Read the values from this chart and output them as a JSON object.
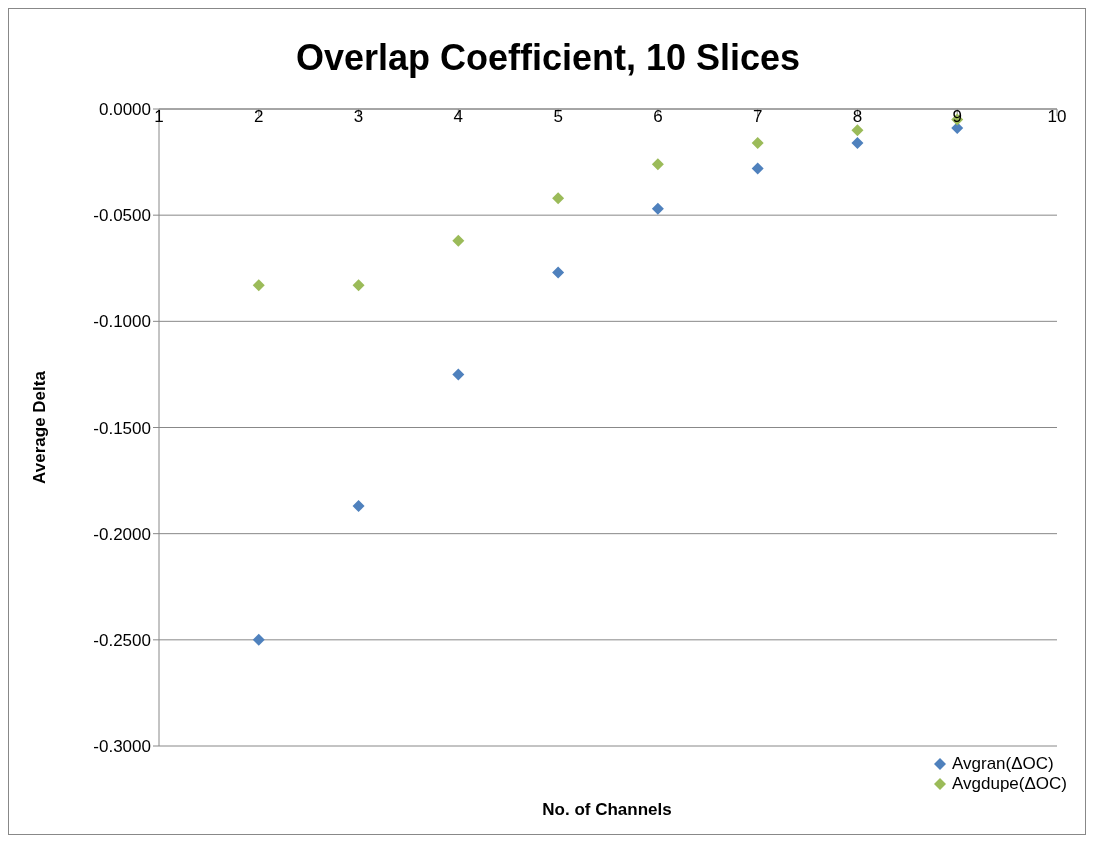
{
  "chart_data": {
    "type": "scatter",
    "title": "Overlap Coefficient, 10 Slices",
    "xlabel": "No. of Channels",
    "ylabel": "Average Delta",
    "x": [
      2,
      3,
      4,
      5,
      6,
      7,
      8,
      9
    ],
    "series": [
      {
        "name": "Avgran(ΔOC)",
        "color": "#4f81bd",
        "values": [
          -0.25,
          -0.187,
          -0.125,
          -0.077,
          -0.047,
          -0.028,
          -0.016,
          -0.009
        ]
      },
      {
        "name": "Avgdupe(ΔOC)",
        "color": "#9bbb59",
        "values": [
          -0.083,
          -0.083,
          -0.062,
          -0.042,
          -0.026,
          -0.016,
          -0.01,
          -0.005
        ]
      }
    ],
    "xlim": [
      1,
      10
    ],
    "xticks": [
      1,
      2,
      3,
      4,
      5,
      6,
      7,
      8,
      9,
      10
    ],
    "ylim": [
      -0.3,
      0
    ],
    "yticks": [
      {
        "value": -0.3,
        "label": "-0.3000"
      },
      {
        "value": -0.25,
        "label": "-0.2500"
      },
      {
        "value": -0.2,
        "label": "-0.2000"
      },
      {
        "value": -0.15,
        "label": "-0.1500"
      },
      {
        "value": -0.1,
        "label": "-0.1000"
      },
      {
        "value": -0.05,
        "label": "-0.0500"
      },
      {
        "value": 0,
        "label": "0.0000"
      }
    ],
    "grid": "y",
    "legend": "bottom right",
    "marker": "diamond"
  }
}
